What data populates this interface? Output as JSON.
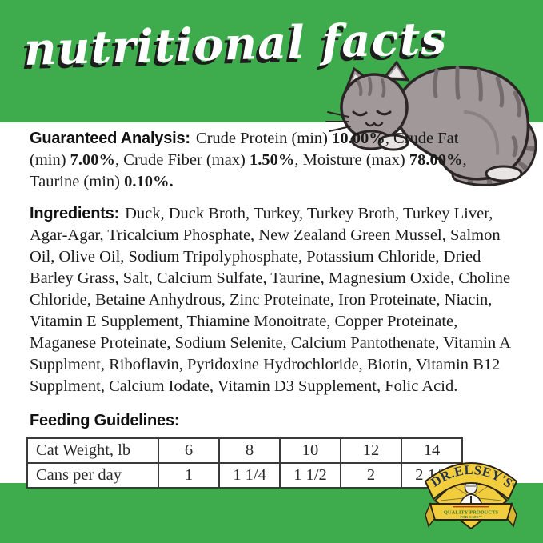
{
  "header": {
    "title": "nutritional facts"
  },
  "colors": {
    "accent_green": "#3EAB4D",
    "text_dark": "#1b1b1b",
    "logo_gold": "#F2CE3E",
    "logo_navy": "#26324f",
    "logo_green_text": "#337a35"
  },
  "guaranteed_analysis": {
    "label": "Guaranteed Analysis:",
    "segments": [
      {
        "text": "Crude Protein (min) ",
        "bold": false
      },
      {
        "text": "10.00%",
        "bold": true
      },
      {
        "text": ", Crude Fat (min) ",
        "bold": false
      },
      {
        "text": "7.00%",
        "bold": true
      },
      {
        "text": ", Crude Fiber (max) ",
        "bold": false
      },
      {
        "text": "1.50%",
        "bold": true
      },
      {
        "text": ", Moisture (max) ",
        "bold": false
      },
      {
        "text": "78.00%",
        "bold": true
      },
      {
        "text": ", Taurine (min) ",
        "bold": false
      },
      {
        "text": "0.10%.",
        "bold": true
      }
    ]
  },
  "ingredients": {
    "label": "Ingredients:",
    "text": "Duck, Duck Broth, Turkey, Turkey Broth, Turkey Liver, Agar-Agar, Tricalcium Phosphate, New Zealand Green Mussel, Salmon Oil, Olive Oil, Sodium Tripolyphosphate, Potassium Chloride, Dried Barley Grass, Salt, Calcium Sulfate, Taurine, Magnesium Oxide, Choline Chloride, Betaine Anhydrous, Zinc Proteinate, Iron Proteinate, Niacin, Vitamin E Supplement, Thiamine Monoitrate, Copper Proteinate, Maganese Proteinate, Sodium Selenite, Calcium Pantothenate, Vitamin A Supplment, Riboflavin, Pyridoxine Hydrochloride, Biotin, Vitamin B12 Supplment, Calcium Iodate, Vitamin D3 Supplement, Folic Acid."
  },
  "feeding_guidelines": {
    "label": "Feeding Guidelines:",
    "table": {
      "rows": [
        [
          "Cat Weight, lb",
          "6",
          "8",
          "10",
          "12",
          "14"
        ],
        [
          "Cans per day",
          "1",
          "1 1/4",
          "1 1/2",
          "2",
          "2 1/4"
        ]
      ]
    }
  },
  "brand_logo": {
    "name": "DR.ELSEY'S",
    "reg_mark": "®",
    "ribbon_line1": "QUALITY PRODUCTS",
    "ribbon_line2": "FOR CATS™"
  },
  "illustrations": {
    "cat": "sleeping-gray-tabby-cat"
  }
}
